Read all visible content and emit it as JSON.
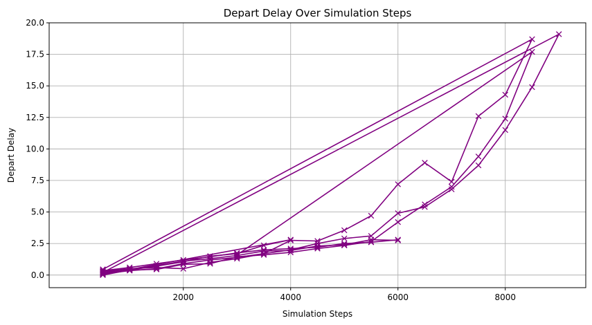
{
  "chart_data": {
    "type": "line",
    "title": "Depart Delay Over Simulation Steps",
    "xlabel": "Simulation Steps",
    "ylabel": "Depart Delay",
    "xlim": [
      -500,
      9500
    ],
    "ylim": [
      -1.0,
      20.0
    ],
    "xticks": [
      2000,
      4000,
      6000,
      8000
    ],
    "yticks": [
      0.0,
      2.5,
      5.0,
      7.5,
      10.0,
      12.5,
      15.0,
      17.5,
      20.0
    ],
    "xtick_labels": [
      "2000",
      "4000",
      "6000",
      "8000"
    ],
    "ytick_labels": [
      "0.0",
      "2.5",
      "5.0",
      "7.5",
      "10.0",
      "12.5",
      "15.0",
      "17.5",
      "20.0"
    ],
    "grid": true,
    "color": "#800080",
    "marker": "x",
    "series": [
      {
        "points": [
          [
            500,
            0.0
          ],
          [
            1000,
            0.4
          ],
          [
            1500,
            0.7
          ],
          [
            2000,
            1.05
          ],
          [
            2500,
            1.5
          ],
          [
            3000,
            1.7
          ],
          [
            3500,
            2.35
          ],
          [
            4000,
            2.8
          ],
          [
            500,
            0.05
          ]
        ]
      },
      {
        "points": [
          [
            500,
            0.3
          ],
          [
            1000,
            0.5
          ],
          [
            1500,
            0.6
          ],
          [
            2000,
            0.5
          ],
          [
            2500,
            1.0
          ],
          [
            3000,
            1.3
          ],
          [
            3500,
            1.7
          ],
          [
            4000,
            2.75
          ],
          [
            4500,
            2.7
          ],
          [
            5000,
            3.55
          ],
          [
            5500,
            4.7
          ],
          [
            6000,
            7.2
          ],
          [
            6500,
            8.9
          ],
          [
            7000,
            7.4
          ],
          [
            7500,
            12.6
          ],
          [
            8000,
            14.3
          ],
          [
            8500,
            18.7
          ],
          [
            500,
            0.45
          ]
        ]
      },
      {
        "points": [
          [
            500,
            0.1
          ],
          [
            1000,
            0.35
          ],
          [
            1500,
            0.5
          ],
          [
            2000,
            0.9
          ],
          [
            2500,
            1.2
          ],
          [
            3000,
            1.4
          ],
          [
            3500,
            1.7
          ],
          [
            4000,
            2.0
          ],
          [
            4500,
            2.5
          ],
          [
            5000,
            2.9
          ],
          [
            5500,
            3.1
          ],
          [
            6000,
            4.9
          ],
          [
            6500,
            5.4
          ],
          [
            7000,
            6.8
          ],
          [
            7500,
            8.7
          ],
          [
            8000,
            11.5
          ],
          [
            8500,
            14.9
          ],
          [
            9000,
            19.1
          ],
          [
            500,
            0.2
          ]
        ]
      },
      {
        "points": [
          [
            500,
            0.25
          ],
          [
            1000,
            0.4
          ],
          [
            1500,
            0.45
          ],
          [
            2000,
            0.85
          ],
          [
            2500,
            0.9
          ],
          [
            3000,
            1.45
          ],
          [
            3500,
            1.6
          ],
          [
            4000,
            1.8
          ],
          [
            4500,
            2.1
          ],
          [
            5000,
            2.35
          ],
          [
            5500,
            2.65
          ],
          [
            6000,
            4.2
          ],
          [
            6500,
            5.6
          ],
          [
            7000,
            7.0
          ],
          [
            7500,
            9.4
          ],
          [
            8000,
            12.4
          ],
          [
            8500,
            17.7
          ],
          [
            3000,
            1.6
          ]
        ]
      },
      {
        "points": [
          [
            500,
            0.15
          ],
          [
            1000,
            0.45
          ],
          [
            1500,
            0.75
          ],
          [
            2000,
            1.1
          ],
          [
            2500,
            1.3
          ],
          [
            3000,
            1.55
          ],
          [
            3500,
            1.9
          ],
          [
            4000,
            1.95
          ],
          [
            4500,
            2.3
          ],
          [
            5000,
            2.4
          ],
          [
            5500,
            2.8
          ],
          [
            6000,
            2.75
          ]
        ]
      },
      {
        "points": [
          [
            500,
            0.35
          ],
          [
            1000,
            0.6
          ],
          [
            1500,
            0.9
          ],
          [
            2000,
            1.2
          ],
          [
            2500,
            1.45
          ],
          [
            3000,
            1.75
          ],
          [
            3500,
            2.0
          ],
          [
            4000,
            2.1
          ],
          [
            4500,
            2.2
          ],
          [
            5000,
            2.5
          ],
          [
            5500,
            2.6
          ],
          [
            6000,
            2.8
          ]
        ]
      }
    ]
  }
}
